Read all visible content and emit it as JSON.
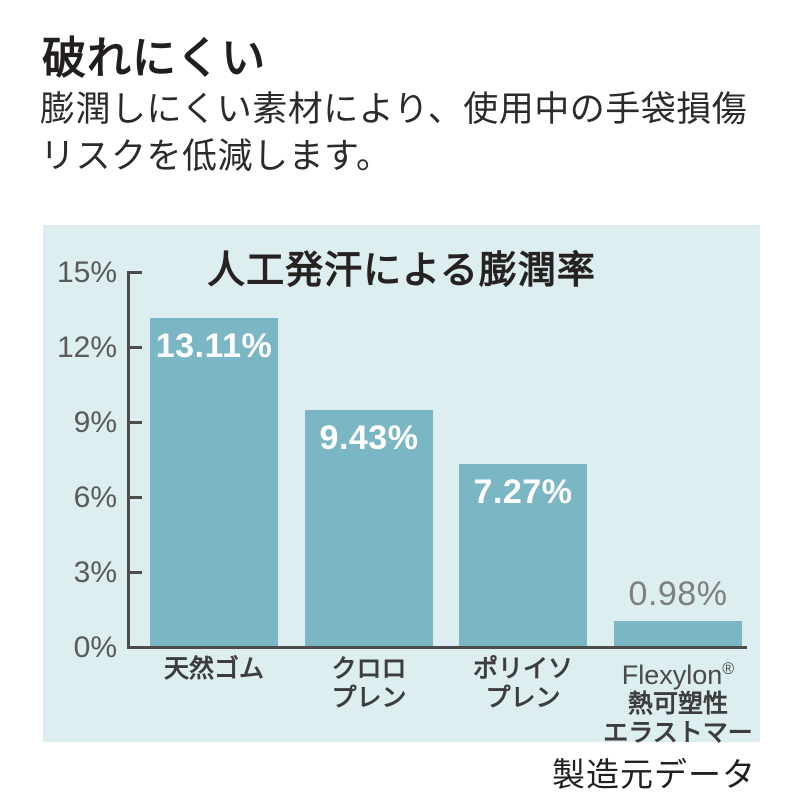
{
  "page": {
    "heading": "破れにくい",
    "description": "膨潤しにくい素材により、使用中の手袋損傷\nリスクを低減します。",
    "source_note": "製造元データ"
  },
  "chart_data": {
    "type": "bar",
    "title": "人工発汗による膨潤率",
    "categories": [
      "天然ゴム",
      "クロロプレン",
      "ポリイソプレン",
      "Flexylon® 熱可塑性エラストマー"
    ],
    "category_labels": [
      "天然ゴム",
      "クロロ\nプレン",
      "ポリイソ\nプレン",
      "Flexylon®\n熱可塑性\nエラストマー"
    ],
    "values": [
      13.11,
      9.43,
      7.27,
      0.98
    ],
    "data_labels": [
      "13.11%",
      "9.43%",
      "7.27%",
      "0.98%"
    ],
    "xlabel": "",
    "ylabel": "",
    "ylim": [
      0,
      15
    ],
    "y_ticks": [
      15,
      12,
      9,
      6,
      3,
      0
    ],
    "y_tick_suffix": "%",
    "grid": false,
    "legend": "none",
    "colors": {
      "bar": "#7AB6C3",
      "panel_background": "#DDEEF0",
      "axis": "#4D4D4D",
      "tick_label": "#5A5A5A",
      "value_label_inside": "#FFFFFF",
      "value_label_outside": "#7F7F7F",
      "category_label": "#3D3D3D",
      "heading_text": "#221E1E"
    }
  }
}
